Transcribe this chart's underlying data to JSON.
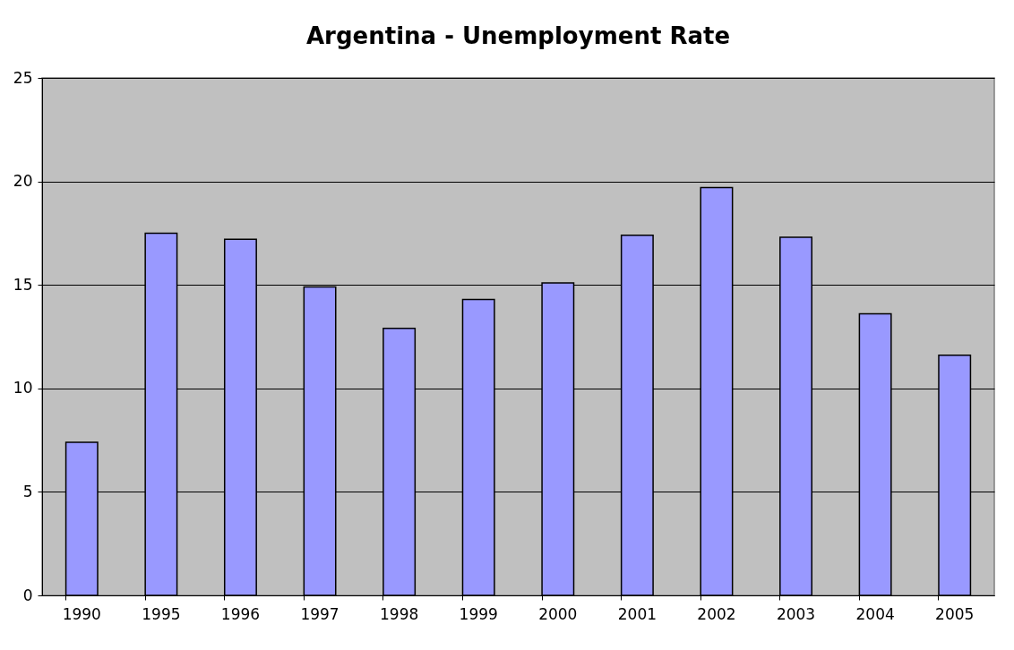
{
  "chart_data": {
    "type": "bar",
    "title": "Argentina - Unemployment Rate",
    "categories": [
      "1990",
      "1995",
      "1996",
      "1997",
      "1998",
      "1999",
      "2000",
      "2001",
      "2002",
      "2003",
      "2004",
      "2005"
    ],
    "values": [
      7.4,
      17.5,
      17.2,
      14.9,
      12.9,
      14.3,
      15.1,
      17.4,
      19.7,
      17.3,
      13.6,
      11.6
    ],
    "color": "#9999ff",
    "ylim": [
      0,
      25
    ],
    "yticks": [
      0,
      5,
      10,
      15,
      20,
      25
    ],
    "grid": "y"
  }
}
